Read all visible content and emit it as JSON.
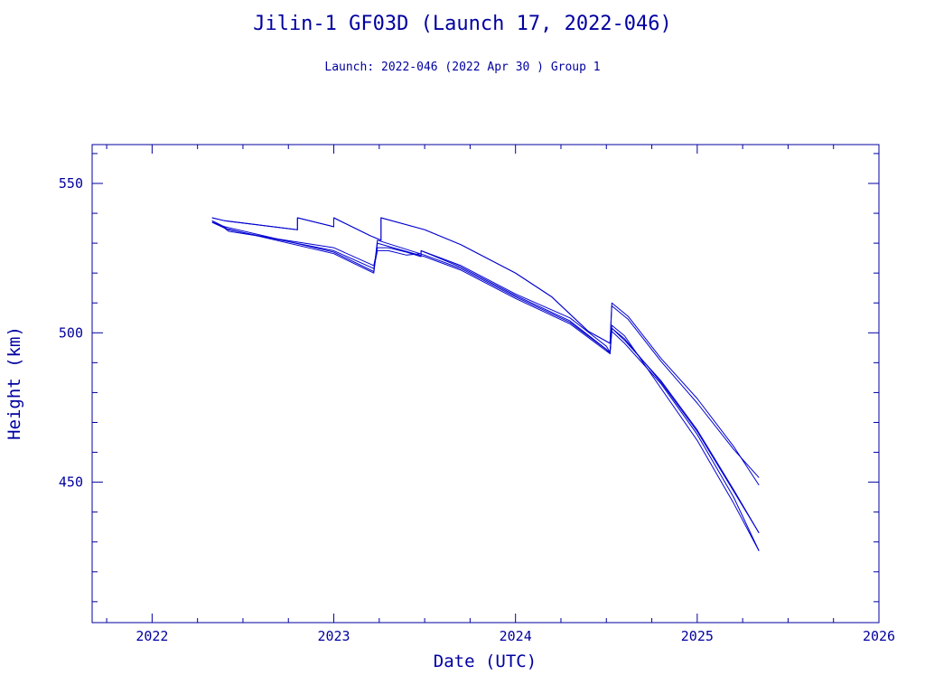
{
  "title": "Jilin-1 GF03D (Launch 17, 2022-046)",
  "subtitle": "Launch: 2022-046  (2022 Apr 30 )  Group 1",
  "colors": {
    "line": "#0000d0",
    "axis": "#0000a0",
    "background": "#ffffff"
  },
  "chart_data": {
    "type": "line",
    "title": "Jilin-1 GF03D (Launch 17, 2022-046)",
    "subtitle": "Launch: 2022-046  (2022 Apr 30 )  Group 1",
    "xlabel": "Date (UTC)",
    "ylabel": "Height (km)",
    "xlim": [
      2021.67,
      2026.0
    ],
    "ylim": [
      403,
      563
    ],
    "x_ticks": [
      2022,
      2023,
      2024,
      2025,
      2026
    ],
    "x_tick_labels": [
      "2022",
      "2023",
      "2024",
      "2025",
      "2026"
    ],
    "y_ticks": [
      450,
      500,
      550
    ],
    "y_tick_labels": [
      "450",
      "500",
      "550"
    ],
    "grid": false,
    "legend": "none",
    "series": [
      {
        "x": [
          2022.33,
          2022.4,
          2022.8,
          2022.8,
          2023.0,
          2023.0,
          2023.2,
          2023.26,
          2023.26,
          2023.5,
          2023.7,
          2024.0,
          2024.2,
          2024.4,
          2024.52,
          2024.53,
          2024.62,
          2024.8,
          2025.0,
          2025.2,
          2025.34
        ],
        "y": [
          538.5,
          537.5,
          534.5,
          538.5,
          535.5,
          538.5,
          532.5,
          531,
          538.5,
          534.5,
          529.5,
          520,
          512,
          500.5,
          496.5,
          510,
          505.5,
          491.5,
          478,
          462,
          449
        ]
      },
      {
        "x": [
          2022.33,
          2022.4,
          2022.8,
          2022.8,
          2023.0,
          2023.0,
          2023.2,
          2023.26,
          2023.26,
          2023.5,
          2023.7,
          2024.0,
          2024.2,
          2024.4,
          2024.52,
          2024.53,
          2024.62,
          2024.8,
          2025.0,
          2025.2,
          2025.34
        ],
        "y": [
          538.5,
          537.5,
          534.5,
          538.5,
          535.5,
          538.5,
          532.5,
          531,
          538.5,
          534.5,
          529.5,
          520,
          512,
          500.5,
          496.5,
          509,
          504.5,
          490.5,
          476.5,
          461,
          451.5
        ]
      },
      {
        "x": [
          2022.33,
          2022.38,
          2022.42,
          2023.0,
          2023.22,
          2023.24,
          2023.3,
          2023.4,
          2023.48,
          2023.48,
          2023.7,
          2024.0,
          2024.3,
          2024.5,
          2024.52,
          2024.53,
          2024.6,
          2024.8,
          2025.0,
          2025.2,
          2025.34
        ],
        "y": [
          537.5,
          536,
          534,
          528.5,
          522.5,
          528.5,
          528.5,
          527,
          525.5,
          527.5,
          522.5,
          513,
          505,
          495.5,
          493.5,
          502.5,
          499,
          481.5,
          464,
          443,
          427
        ]
      },
      {
        "x": [
          2022.33,
          2022.38,
          2022.42,
          2023.0,
          2023.22,
          2023.24,
          2023.3,
          2023.4,
          2023.48,
          2023.48,
          2023.7,
          2024.0,
          2024.3,
          2024.5,
          2024.52,
          2024.53,
          2024.6,
          2024.8,
          2025.0,
          2025.2,
          2025.34
        ],
        "y": [
          537.5,
          536,
          534.5,
          527.5,
          521.5,
          527.5,
          527.5,
          526,
          526.5,
          527.5,
          522,
          512.5,
          504,
          494.5,
          493,
          501.5,
          498,
          483.5,
          467,
          447,
          433
        ]
      },
      {
        "x": [
          2022.33,
          2022.4,
          2023.0,
          2023.22,
          2023.24,
          2023.5,
          2023.7,
          2024.0,
          2024.3,
          2024.52,
          2024.53,
          2024.6,
          2024.8,
          2025.0,
          2025.2,
          2025.34
        ],
        "y": [
          537,
          535.5,
          527,
          520.5,
          531,
          526,
          521.5,
          512,
          503.5,
          493.5,
          501.5,
          497.5,
          484,
          467.5,
          447.5,
          433
        ]
      },
      {
        "x": [
          2022.33,
          2022.4,
          2023.0,
          2023.22,
          2023.24,
          2023.5,
          2023.7,
          2024.0,
          2024.3,
          2024.52,
          2024.53,
          2024.6,
          2024.8,
          2025.0,
          2025.2,
          2025.34
        ],
        "y": [
          537,
          535,
          526.5,
          520,
          530,
          525.5,
          521,
          511.5,
          503,
          493,
          500.5,
          496.5,
          483,
          466,
          445,
          427
        ]
      }
    ]
  }
}
